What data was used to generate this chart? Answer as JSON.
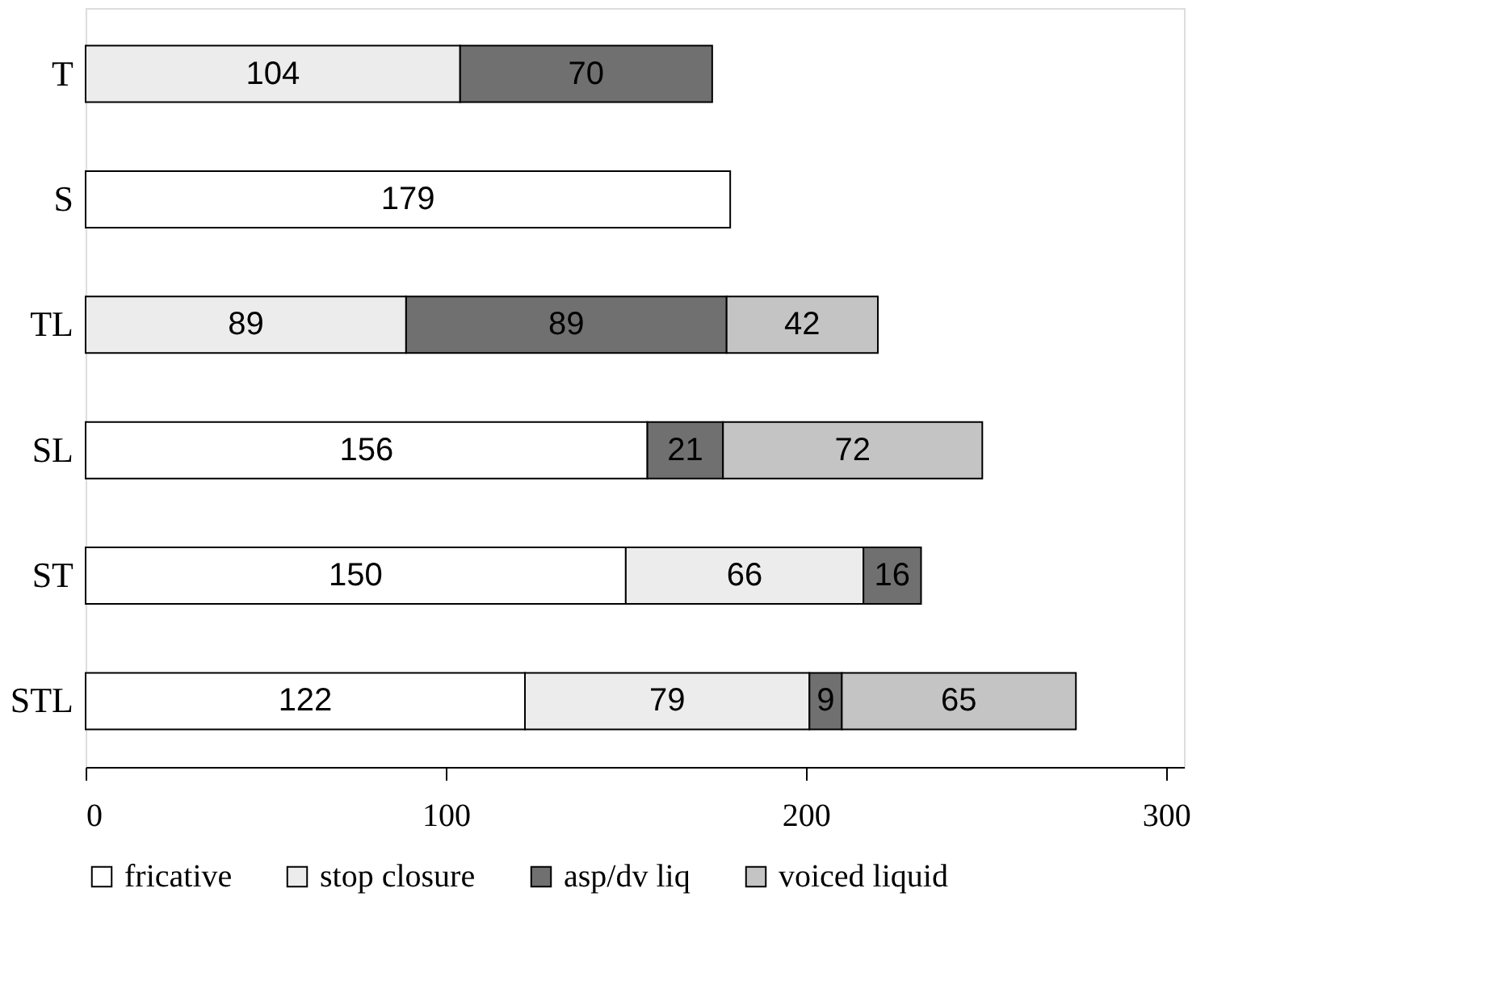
{
  "chart_data": {
    "type": "bar",
    "orientation": "horizontal",
    "stacked": true,
    "categories": [
      "T",
      "S",
      "TL",
      "SL",
      "ST",
      "STL"
    ],
    "series": [
      {
        "name": "fricative",
        "color": "#ffffff",
        "values": [
          null,
          179,
          null,
          156,
          150,
          122
        ]
      },
      {
        "name": "stop closure",
        "color": "#ececec",
        "values": [
          104,
          null,
          89,
          null,
          66,
          79
        ]
      },
      {
        "name": "asp/dv liq",
        "color": "#707070",
        "values": [
          70,
          null,
          89,
          21,
          16,
          9
        ]
      },
      {
        "name": "voiced liquid",
        "color": "#c4c4c4",
        "values": [
          null,
          null,
          42,
          72,
          null,
          65
        ]
      }
    ],
    "xlim": [
      0,
      305
    ],
    "xticks": [
      0,
      100,
      200,
      300
    ],
    "data_labels": true,
    "legend": "bottom",
    "grid": false
  }
}
